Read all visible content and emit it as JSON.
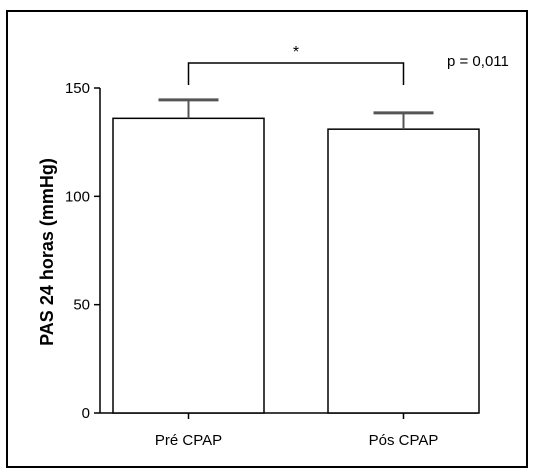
{
  "chart_data": {
    "type": "bar",
    "categories": [
      "Pré CPAP",
      "Pós CPAP"
    ],
    "values": [
      136,
      131
    ],
    "error": [
      8.5,
      7.5
    ],
    "ylabel": "PAS 24 horas (mmHg)",
    "xlabel": "",
    "title": "",
    "ylim": [
      0,
      150
    ],
    "yticks": [
      0,
      50,
      100,
      150
    ],
    "grid": false,
    "significance": {
      "label": "*",
      "between": [
        0,
        1
      ]
    },
    "annotation": "p = 0,011"
  }
}
